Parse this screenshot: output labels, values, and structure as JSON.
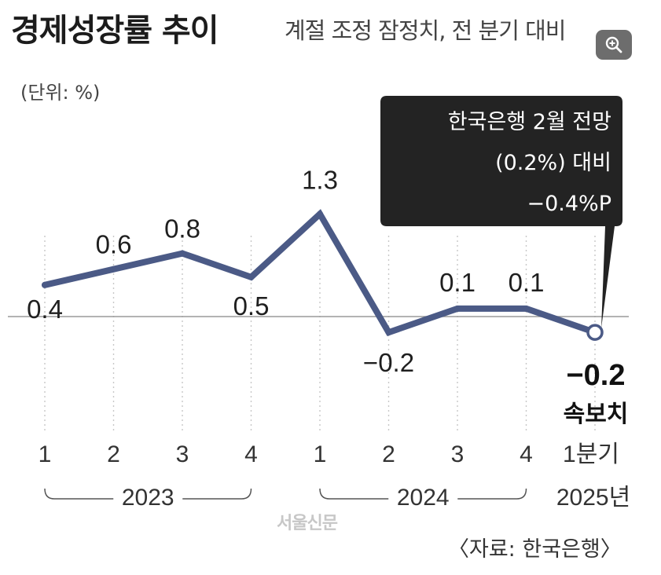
{
  "header": {
    "title": "경제성장률 추이",
    "subtitle": "계절 조정 잠정치, 전 분기 대비"
  },
  "unit_label": "(단위: %)",
  "source": "〈자료: 한국은행〉",
  "watermark": "서울신문",
  "zoom_button": {
    "icon": "zoom-in-icon"
  },
  "colors": {
    "line": "#4b5a86",
    "callout_bg": "#232323",
    "baseline": "#999999"
  },
  "chart_data": {
    "type": "line",
    "categories": [
      "1",
      "2",
      "3",
      "4",
      "1",
      "2",
      "3",
      "4",
      "1분기"
    ],
    "values": [
      0.4,
      0.6,
      0.8,
      0.5,
      1.3,
      -0.2,
      0.1,
      0.1,
      -0.2
    ],
    "value_labels": [
      "0.4",
      "0.6",
      "0.8",
      "0.5",
      "1.3",
      "−0.2",
      "0.1",
      "0.1",
      "−0.2"
    ],
    "year_groups": [
      {
        "label": "2023",
        "from": 0,
        "to": 3
      },
      {
        "label": "2024",
        "from": 4,
        "to": 7
      },
      {
        "label": "2025년",
        "from": 8,
        "to": 8
      }
    ],
    "ylim": [
      -0.2,
      1.3
    ],
    "last_point_note": "속보치",
    "callout": {
      "lines": [
        "한국은행 2월 전망",
        "(0.2%) 대비",
        "−0.4%P"
      ]
    },
    "grid": "vertical-dotted"
  }
}
